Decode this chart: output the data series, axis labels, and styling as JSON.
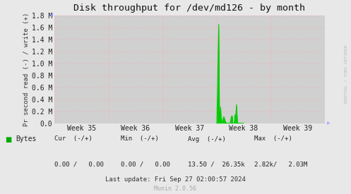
{
  "title": "Disk throughput for /dev/md126 - by month",
  "ylabel": "Pr second read (-) / write (+)",
  "background_color": "#e8e8e8",
  "plot_bg_color": "#d0d0d0",
  "grid_color": "#ffaaaa",
  "line_color": "#00cc00",
  "ylim": [
    0,
    1800000
  ],
  "yticks": [
    0.0,
    200000,
    400000,
    600000,
    800000,
    1000000,
    1200000,
    1400000,
    1600000,
    1800000
  ],
  "ytick_labels": [
    "0.0",
    "0.2 M",
    "0.4 M",
    "0.6 M",
    "0.8 M",
    "1.0 M",
    "1.2 M",
    "1.4 M",
    "1.6 M",
    "1.8 M"
  ],
  "xtick_labels": [
    "Week 35",
    "Week 36",
    "Week 37",
    "Week 38",
    "Week 39"
  ],
  "footer_line3": "Last update: Fri Sep 27 02:00:57 2024",
  "munin_label": "Munin 2.0.56",
  "rrdtool_label": "RRDTOOL / TOBI OETIKER",
  "legend_label": "Bytes",
  "legend_color": "#00aa00",
  "cur_label": "Cur  (-/+)",
  "min_label": "Min  (-/+)",
  "avg_label": "Avg  (-/+)",
  "max_label": "Max  (-/+)",
  "cur_val": "0.00 /   0.00",
  "min_val": "0.00 /   0.00",
  "avg_val": "13.50 /  26.35k",
  "max_val": "2.82k/   2.03M",
  "spike_data": [
    [
      0.6,
      0
    ],
    [
      0.601,
      0
    ],
    [
      0.608,
      1650000
    ],
    [
      0.611,
      0
    ],
    [
      0.615,
      270000
    ],
    [
      0.618,
      0
    ],
    [
      0.624,
      80000
    ],
    [
      0.627,
      110000
    ],
    [
      0.63,
      65000
    ],
    [
      0.633,
      20000
    ],
    [
      0.636,
      5000
    ],
    [
      0.64,
      0
    ],
    [
      0.65,
      0
    ],
    [
      0.655,
      115000
    ],
    [
      0.658,
      120000
    ],
    [
      0.66,
      0
    ],
    [
      0.665,
      0
    ],
    [
      0.668,
      140000
    ],
    [
      0.671,
      130000
    ],
    [
      0.674,
      310000
    ],
    [
      0.677,
      20000
    ],
    [
      0.68,
      0
    ],
    [
      0.7,
      0
    ]
  ]
}
